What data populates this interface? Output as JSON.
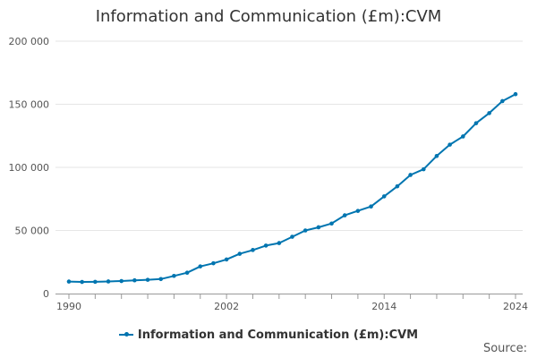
{
  "chart_data": {
    "type": "line",
    "title": "Information and Communication (£m):CVM",
    "xlabel": "",
    "ylabel": "",
    "x": [
      1990,
      1991,
      1992,
      1993,
      1994,
      1995,
      1996,
      1997,
      1998,
      1999,
      2000,
      2001,
      2002,
      2003,
      2004,
      2005,
      2006,
      2007,
      2008,
      2009,
      2010,
      2011,
      2012,
      2013,
      2014,
      2015,
      2016,
      2017,
      2018,
      2019,
      2020,
      2021,
      2022,
      2023,
      2024
    ],
    "series": [
      {
        "name": "Information and Communication (£m):CVM",
        "color": "#0075b0",
        "values": [
          9500,
          9200,
          9300,
          9600,
          9900,
          10500,
          10900,
          11500,
          14000,
          16500,
          21500,
          24000,
          27000,
          31500,
          34500,
          38000,
          40000,
          45000,
          50000,
          52500,
          55500,
          62000,
          65500,
          69000,
          77000,
          85000,
          94000,
          98500,
          109000,
          118000,
          124500,
          135000,
          143000,
          152500,
          158000
        ]
      }
    ],
    "xlim": [
      1990,
      2024
    ],
    "ylim": [
      0,
      200000
    ],
    "x_ticks": [
      1990,
      2002,
      2014,
      2024
    ],
    "x_tick_labels": [
      "1990",
      "2002",
      "2014",
      "2024"
    ],
    "y_ticks": [
      0,
      50000,
      100000,
      150000,
      200000
    ],
    "y_tick_labels": [
      "0",
      "50 000",
      "100 000",
      "150 000",
      "200 000"
    ],
    "grid": true,
    "legend_position": "bottom-center"
  },
  "source_label": "Source:"
}
